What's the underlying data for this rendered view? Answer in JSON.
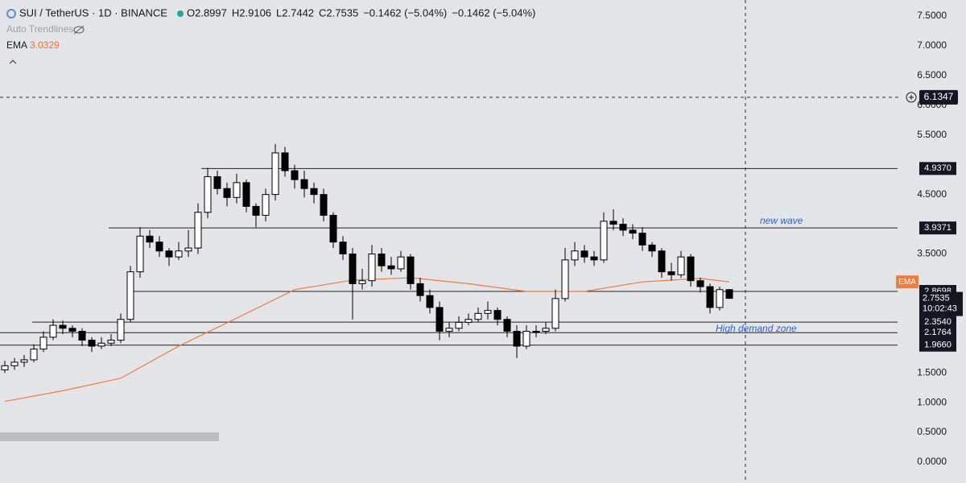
{
  "chart_data": {
    "type": "candlestick",
    "symbol": "SUI / TetherUS · 1D · BINANCE",
    "quote": [
      "O2.8997",
      "H2.9106",
      "L2.7442",
      "C2.7535",
      "−0.1462 (−5.04%)",
      "−0.1462 (−5.04%)"
    ],
    "auto_trendlines": "Auto Trendlines",
    "ema_name": "EMA",
    "ema_value": "3.0329",
    "ema_tag": "EMA",
    "up_color": "#ffffff",
    "down_color": "#000000",
    "ema_color": "#f07c3e",
    "open": [
      1.55,
      1.62,
      1.68,
      1.72,
      1.9,
      2.1,
      2.3,
      2.25,
      2.2,
      2.05,
      1.95,
      2.0,
      2.05,
      2.4,
      3.2,
      3.8,
      3.7,
      3.55,
      3.45,
      3.55,
      3.6,
      4.2,
      4.8,
      4.6,
      4.45,
      4.7,
      4.3,
      4.15,
      4.5,
      5.2,
      4.9,
      4.75,
      4.6,
      4.5,
      4.15,
      3.7,
      3.5,
      3.0,
      3.05,
      3.5,
      3.3,
      3.25,
      3.45,
      3.0,
      2.8,
      2.6,
      2.2,
      2.25,
      2.35,
      2.4,
      2.5,
      2.55,
      2.4,
      2.2,
      1.95,
      2.2,
      2.2,
      2.25,
      2.75,
      3.4,
      3.55,
      3.45,
      3.4,
      4.05,
      4.0,
      3.9,
      3.85,
      3.65,
      3.55,
      3.2,
      3.15,
      3.45,
      3.05,
      2.95,
      2.6,
      2.8997
    ],
    "high": [
      1.7,
      1.75,
      1.8,
      1.98,
      2.2,
      2.4,
      2.38,
      2.3,
      2.25,
      2.1,
      2.1,
      2.15,
      2.5,
      3.3,
      3.95,
      3.9,
      3.8,
      3.6,
      3.7,
      3.9,
      4.35,
      4.95,
      4.9,
      4.7,
      4.85,
      4.75,
      4.35,
      4.6,
      5.35,
      5.3,
      5.0,
      4.9,
      4.7,
      4.6,
      4.2,
      3.8,
      3.6,
      3.25,
      3.65,
      3.6,
      3.45,
      3.55,
      3.5,
      3.1,
      2.9,
      2.7,
      2.35,
      2.45,
      2.5,
      2.6,
      2.7,
      2.6,
      2.45,
      2.3,
      2.3,
      2.3,
      2.35,
      2.9,
      3.6,
      3.7,
      3.65,
      3.55,
      4.2,
      4.25,
      4.1,
      4.0,
      3.95,
      3.7,
      3.6,
      3.35,
      3.55,
      3.5,
      3.1,
      3.0,
      2.95,
      2.9106
    ],
    "low": [
      1.5,
      1.55,
      1.6,
      1.68,
      1.85,
      2.05,
      2.15,
      2.1,
      1.95,
      1.85,
      1.9,
      1.95,
      2.0,
      2.35,
      3.1,
      3.6,
      3.45,
      3.3,
      3.4,
      3.45,
      3.5,
      4.1,
      4.5,
      4.3,
      4.35,
      4.2,
      3.95,
      4.05,
      4.4,
      4.8,
      4.6,
      4.45,
      4.35,
      4.05,
      3.6,
      3.4,
      2.4,
      2.9,
      2.95,
      3.2,
      3.15,
      3.2,
      2.9,
      2.7,
      2.5,
      2.05,
      2.1,
      2.2,
      2.3,
      2.35,
      2.4,
      2.3,
      2.1,
      1.75,
      1.9,
      2.1,
      2.15,
      2.2,
      2.7,
      3.3,
      3.35,
      3.3,
      3.35,
      3.9,
      3.8,
      3.75,
      3.55,
      3.45,
      3.1,
      3.05,
      3.1,
      2.95,
      2.85,
      2.5,
      2.55,
      2.7442
    ],
    "close": [
      1.62,
      1.68,
      1.72,
      1.9,
      2.1,
      2.3,
      2.25,
      2.2,
      2.05,
      1.95,
      2.0,
      2.05,
      2.4,
      3.2,
      3.8,
      3.7,
      3.55,
      3.45,
      3.55,
      3.6,
      4.2,
      4.8,
      4.6,
      4.45,
      4.7,
      4.3,
      4.15,
      4.5,
      5.2,
      4.9,
      4.75,
      4.6,
      4.5,
      4.15,
      3.7,
      3.5,
      3.0,
      3.05,
      3.5,
      3.3,
      3.25,
      3.45,
      3.0,
      2.8,
      2.6,
      2.2,
      2.25,
      2.35,
      2.4,
      2.5,
      2.55,
      2.4,
      2.2,
      1.95,
      2.2,
      2.2,
      2.25,
      2.75,
      3.4,
      3.55,
      3.45,
      3.4,
      4.05,
      4.0,
      3.9,
      3.85,
      3.65,
      3.55,
      3.2,
      3.15,
      3.45,
      3.05,
      2.95,
      2.6,
      2.8997,
      2.7535
    ],
    "ema": {
      "x": [
        0,
        6,
        12,
        18,
        24,
        30,
        36,
        42,
        48,
        54,
        60,
        66,
        72,
        75
      ],
      "values": [
        1.02,
        1.2,
        1.41,
        1.95,
        2.42,
        2.9,
        3.06,
        3.1,
        3.0,
        2.87,
        2.87,
        3.03,
        3.09,
        3.03
      ]
    },
    "levels": [
      {
        "value": 4.937,
        "label": "4.9370"
      },
      {
        "value": 3.9371,
        "label": "3.9371"
      },
      {
        "value": 2.8698,
        "label": "2.8698"
      },
      {
        "value": 2.354,
        "label": "2.3540"
      },
      {
        "value": 2.1764,
        "label": "2.1764"
      },
      {
        "value": 1.966,
        "label": "1.9660"
      }
    ],
    "crosshair": {
      "value": 6.1347,
      "label": "6.1347"
    },
    "last_price": {
      "value": 2.7535,
      "label": "2.7535"
    },
    "countdown": "10:02:43",
    "annotations": [
      "new wave",
      "High demand zone"
    ],
    "ylim": [
      0,
      7.5
    ],
    "yticks": [
      {
        "value": 0,
        "label": "0.0000"
      },
      {
        "value": 0.5,
        "label": "0.5000"
      },
      {
        "value": 1,
        "label": "1.0000"
      },
      {
        "value": 1.5,
        "label": "1.5000"
      },
      {
        "value": 3.5,
        "label": "3.5000"
      },
      {
        "value": 4.5,
        "label": "4.5000"
      },
      {
        "value": 5.5,
        "label": "5.5000"
      },
      {
        "value": 6,
        "label": "6.0000"
      },
      {
        "value": 6.5,
        "label": "6.5000"
      },
      {
        "value": 7,
        "label": "7.0000"
      },
      {
        "value": 7.5,
        "label": "7.5000"
      }
    ]
  }
}
